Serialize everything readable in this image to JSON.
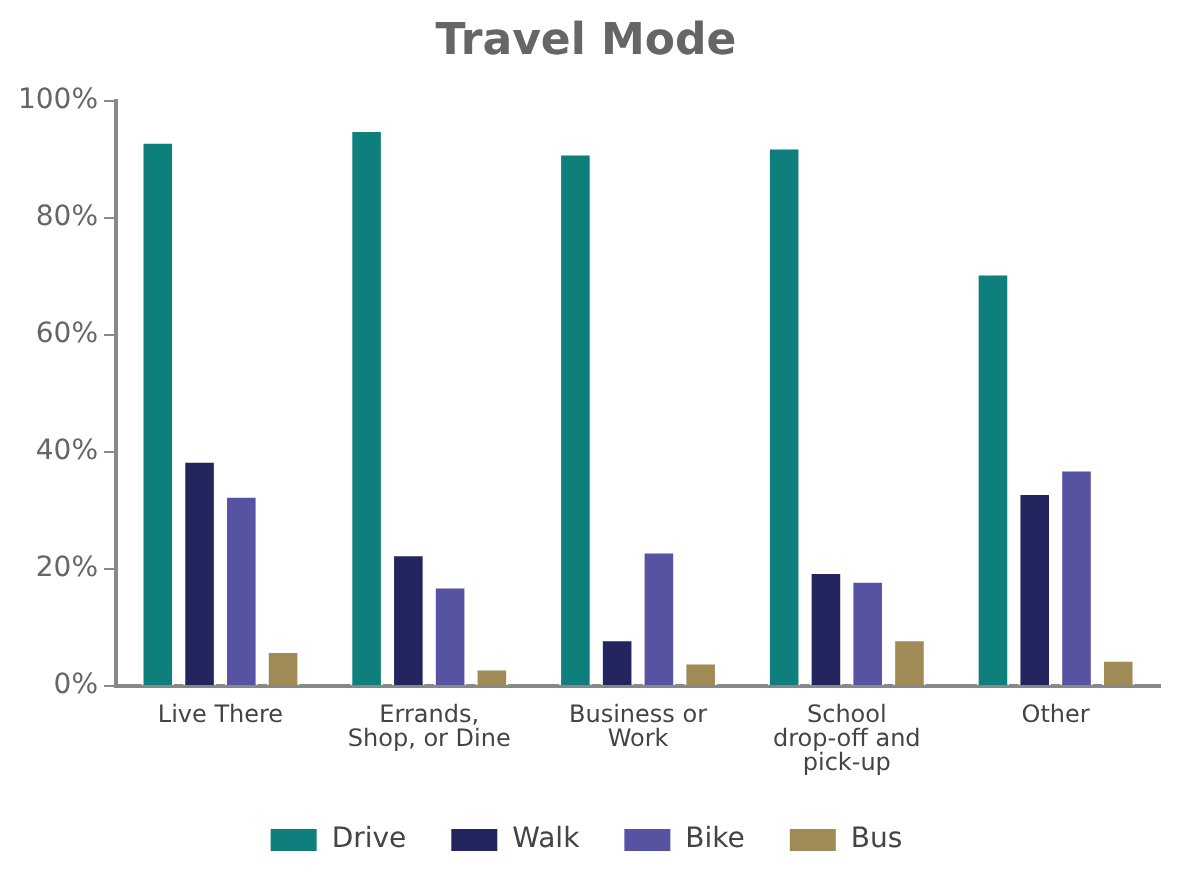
{
  "chart_data": {
    "type": "bar",
    "title": "Travel Mode",
    "categories": [
      "Live There",
      "Errands, Shop, or Dine",
      "Business or Work",
      "School drop-off and pick-up",
      "Other"
    ],
    "series": [
      {
        "name": "Drive",
        "color": "#0e7f7c",
        "values": [
          93,
          95,
          91,
          92,
          70.5
        ]
      },
      {
        "name": "Walk",
        "color": "#23265e",
        "values": [
          38.5,
          22.5,
          8,
          19.5,
          33
        ]
      },
      {
        "name": "Bike",
        "color": "#5654a2",
        "values": [
          32.5,
          17,
          23,
          18,
          37
        ]
      },
      {
        "name": "Bus",
        "color": "#a08a55",
        "values": [
          6,
          3,
          4,
          8,
          4.5
        ]
      }
    ],
    "ylim": [
      0,
      100
    ],
    "yticks": [
      {
        "value": 0,
        "label": "0%"
      },
      {
        "value": 20,
        "label": "20%"
      },
      {
        "value": 40,
        "label": "40%"
      },
      {
        "value": 60,
        "label": "60%"
      },
      {
        "value": 80,
        "label": "80%"
      },
      {
        "value": 100,
        "label": "100%"
      }
    ],
    "grid": false,
    "legend": "bottom"
  }
}
